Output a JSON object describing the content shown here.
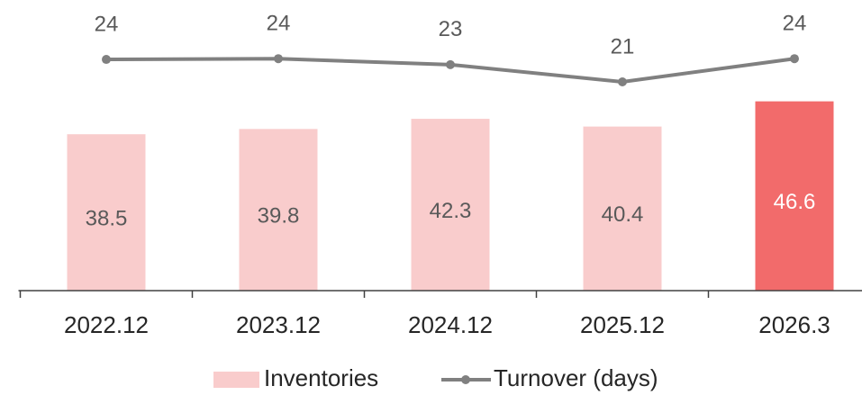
{
  "chart_data": {
    "type": "bar",
    "categories": [
      "2022.12",
      "2023.12",
      "2024.12",
      "2025.12",
      "2026.3"
    ],
    "ylim": [
      0,
      70
    ],
    "y2lim": [
      -7,
      31
    ],
    "legend": "bottom",
    "series": [
      {
        "name": "Inventories",
        "type": "bar",
        "colors": [
          "#f9cccc",
          "#f9cccc",
          "#f9cccc",
          "#f9cccc",
          "#f26b6b"
        ],
        "values": [
          38.5,
          39.8,
          42.3,
          40.4,
          46.6
        ]
      },
      {
        "name": "Turnover (days)",
        "type": "line",
        "axis": "y2",
        "color": "#808080",
        "values": [
          23.9,
          24.0,
          23.2,
          20.9,
          24.0
        ],
        "value_labels": [
          "24",
          "24",
          "23",
          "21",
          "24"
        ]
      }
    ]
  }
}
